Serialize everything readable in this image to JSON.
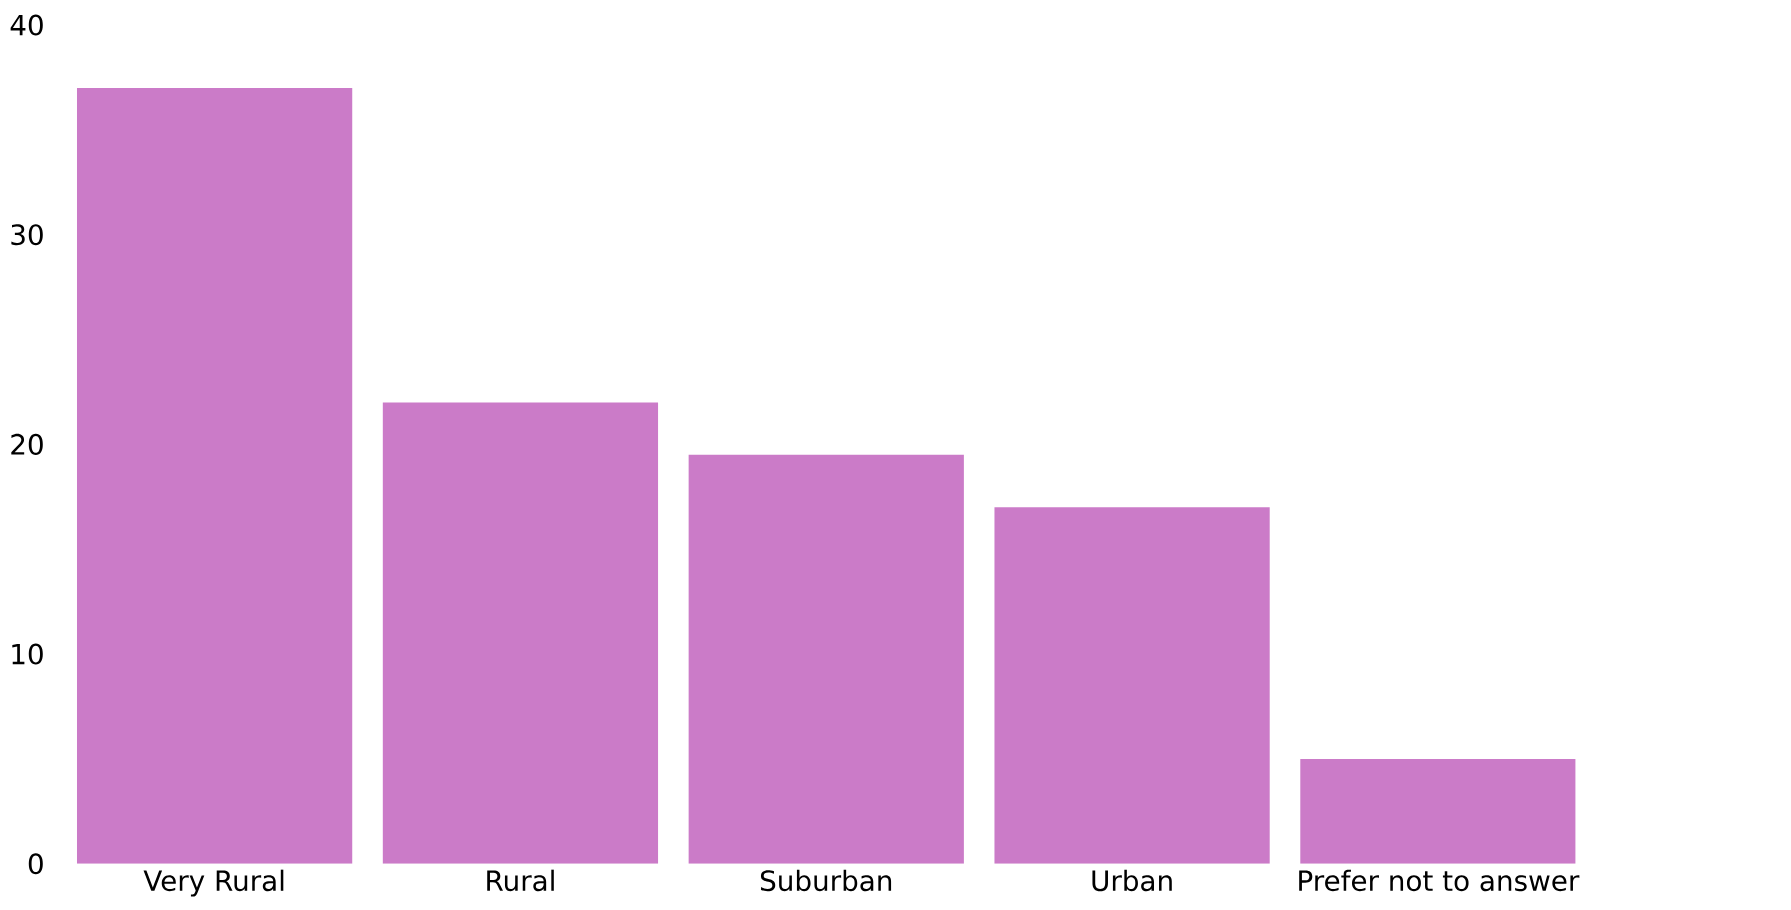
{
  "chart_data": {
    "type": "bar",
    "categories": [
      "Very Rural",
      "Rural",
      "Suburban",
      "Urban",
      "Prefer not to answer"
    ],
    "values": [
      37,
      22,
      19.5,
      17,
      5
    ],
    "color": "#cb7bc8",
    "ylim": [
      0,
      40
    ],
    "yticks": [
      0,
      10,
      20,
      30,
      40
    ]
  }
}
